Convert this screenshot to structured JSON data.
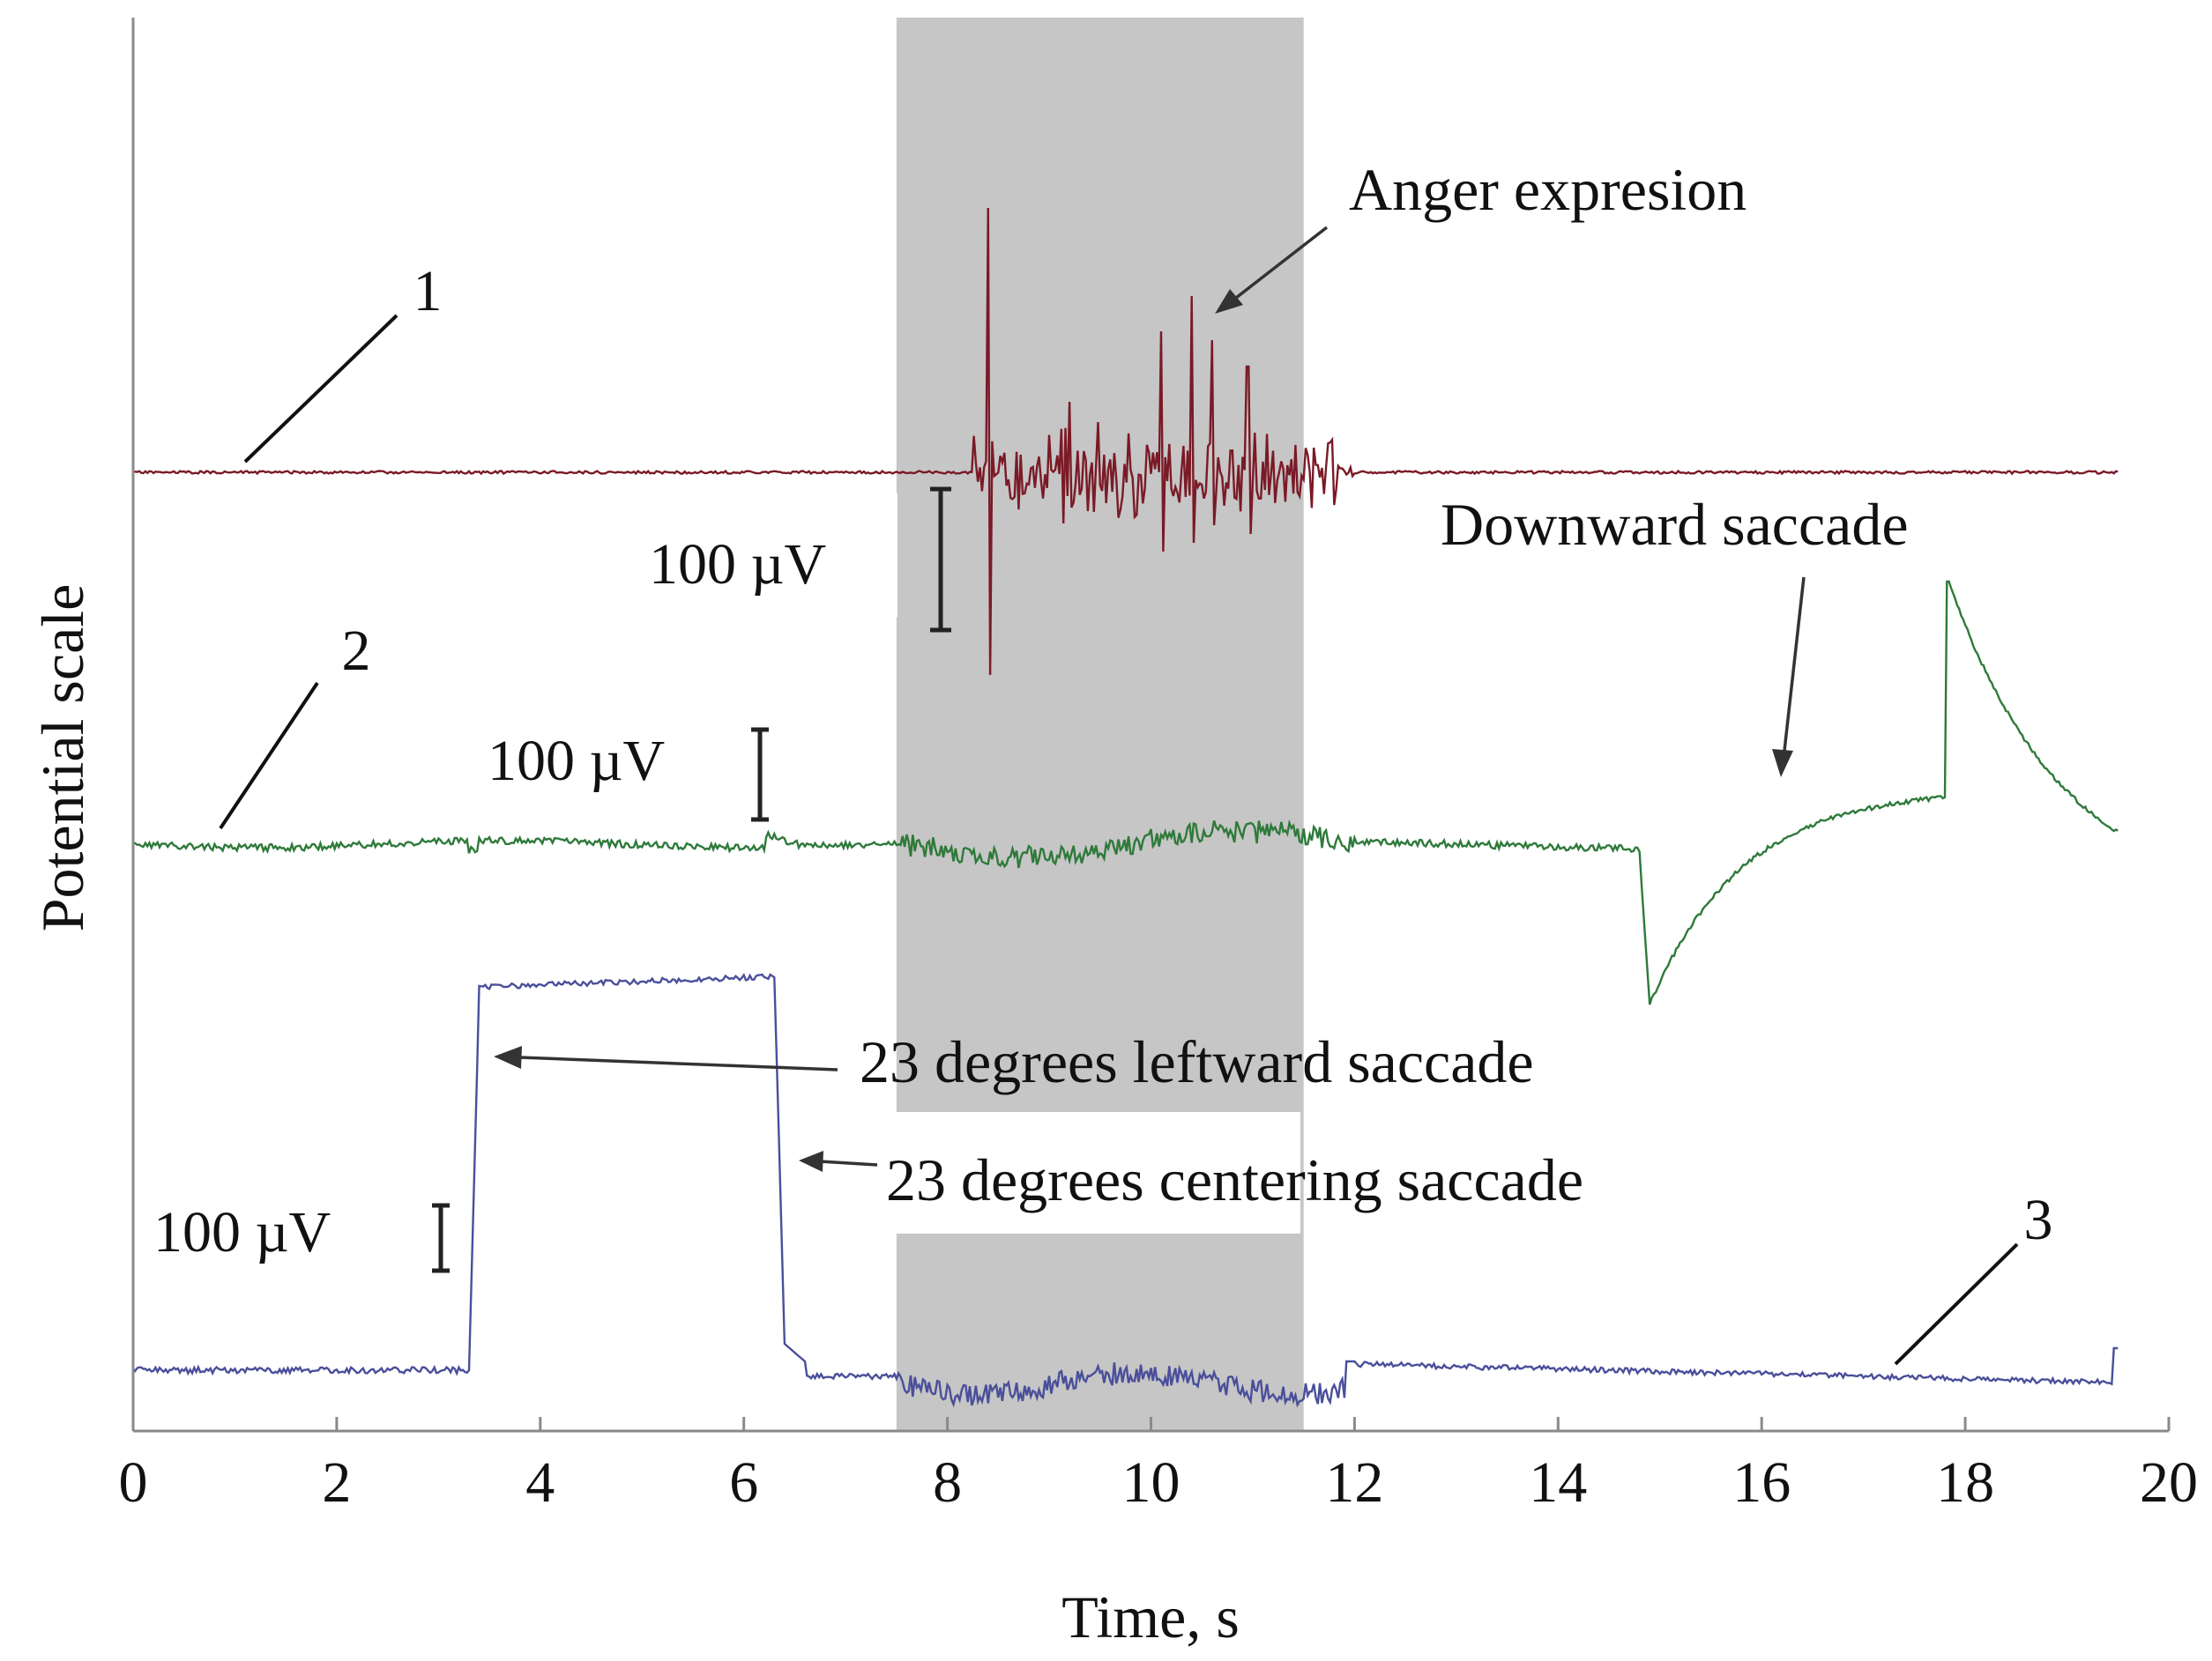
{
  "chart_data": {
    "type": "line",
    "xlabel": "Time, s",
    "ylabel": "Potential scale",
    "xlim": [
      0,
      20
    ],
    "x_ticks": [
      0,
      2,
      4,
      6,
      8,
      10,
      12,
      14,
      16,
      18,
      20
    ],
    "shaded_region": {
      "x_start": 7.5,
      "x_end": 11.5,
      "color": "#c6c6c6"
    },
    "series": [
      {
        "name": "1",
        "label": "1",
        "color": "#7a1a26",
        "baseline": 0,
        "events": [
          {
            "x": 8.4,
            "x_end": 11.8,
            "description": "Anger expresion",
            "type": "emg-burst"
          }
        ]
      },
      {
        "name": "2",
        "label": "2",
        "color": "#2e7a3a",
        "baseline": 0,
        "events": [
          {
            "x": 14.9,
            "description": "Downward saccade",
            "type": "step-decay"
          },
          {
            "x": 17.8,
            "type": "spike-decay"
          }
        ]
      },
      {
        "name": "3",
        "label": "3",
        "color": "#4a4f9a",
        "baseline": 0,
        "events": [
          {
            "x": 3.3,
            "description": "23 degrees leftward saccade",
            "type": "step-up"
          },
          {
            "x": 6.3,
            "description": "23 degrees centering saccade",
            "type": "step-down"
          }
        ]
      }
    ],
    "scale_bars": [
      {
        "label": "100 µV",
        "trace": "1"
      },
      {
        "label": "100 µV",
        "trace": "2"
      },
      {
        "label": "100 µV",
        "trace": "3"
      }
    ],
    "annotations": [
      "Anger expresion",
      "Downward saccade",
      "23 degrees leftward saccade",
      "23 degrees centering saccade"
    ]
  }
}
